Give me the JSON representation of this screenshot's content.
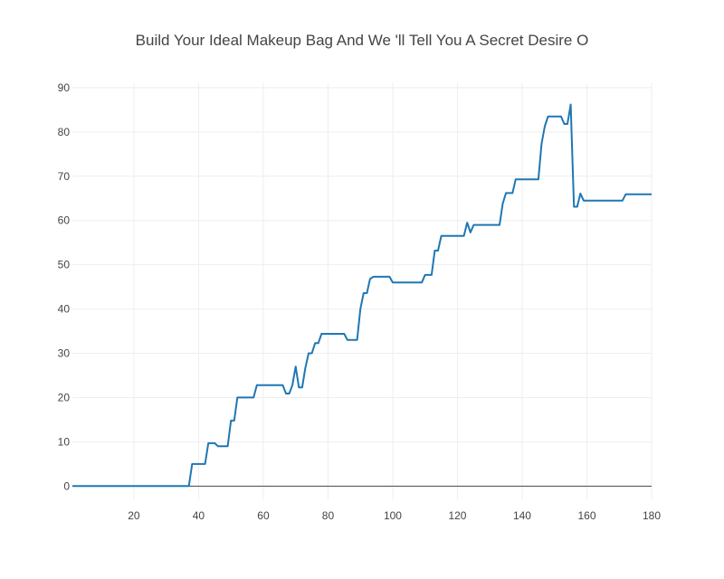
{
  "chart_data": {
    "type": "line",
    "title": "Build Your Ideal Makeup Bag And We 'll Tell You A Secret Desire O",
    "xlabel": "",
    "ylabel": "",
    "xlim": [
      1,
      180
    ],
    "ylim": [
      -3,
      91
    ],
    "x_ticks": [
      20,
      40,
      60,
      80,
      100,
      120,
      140,
      160,
      180
    ],
    "y_ticks": [
      0,
      10,
      20,
      30,
      40,
      50,
      60,
      70,
      80,
      90
    ],
    "grid": true,
    "legend": "none",
    "series": [
      {
        "color": "#1f77b4",
        "x": [
          1,
          37,
          38,
          42,
          43,
          45,
          46,
          49,
          50,
          51,
          52,
          57,
          58,
          66,
          67,
          68,
          69,
          70,
          71,
          72,
          73,
          74,
          75,
          76,
          77,
          78,
          85,
          86,
          89,
          90,
          91,
          92,
          93,
          94,
          99,
          100,
          109,
          110,
          112,
          113,
          114,
          115,
          122,
          123,
          124,
          125,
          133,
          134,
          135,
          137,
          138,
          145,
          146,
          147,
          148,
          152,
          153,
          154,
          155,
          156,
          157,
          158,
          159,
          171,
          172,
          180
        ],
        "y": [
          0,
          0,
          5,
          5,
          9.7,
          9.7,
          9,
          9,
          14.8,
          14.8,
          20,
          20,
          22.8,
          22.8,
          20.9,
          20.9,
          22.8,
          27,
          22.3,
          22.3,
          26.7,
          30,
          30,
          32.3,
          32.3,
          34.4,
          34.4,
          33,
          33,
          40,
          43.6,
          43.6,
          46.8,
          47.3,
          47.3,
          46,
          46,
          47.7,
          47.7,
          53.2,
          53.2,
          56.5,
          56.5,
          59.5,
          57.3,
          59,
          59,
          63.8,
          66.2,
          66.2,
          69.3,
          69.3,
          77.3,
          81.3,
          83.5,
          83.5,
          81.8,
          81.8,
          86.2,
          63.1,
          63.1,
          66.1,
          64.5,
          64.5,
          65.9,
          65.9
        ]
      }
    ]
  }
}
